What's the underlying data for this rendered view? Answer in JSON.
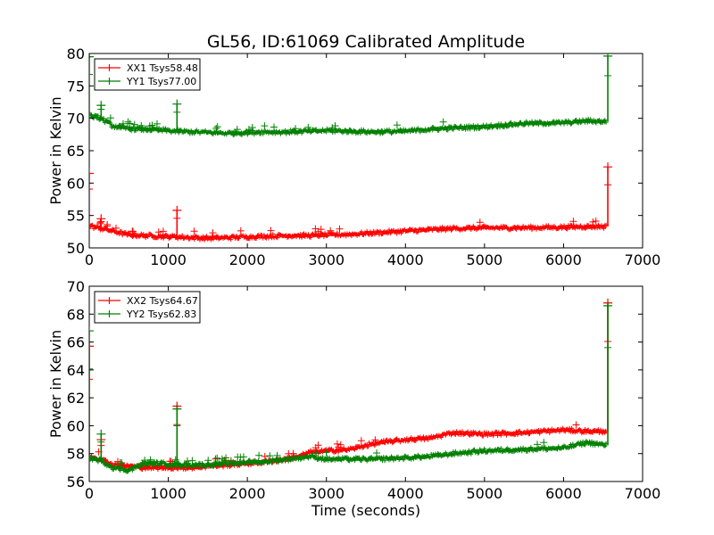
{
  "figure": {
    "title": "GL56, ID:61069 Calibrated Amplitude"
  },
  "colors": {
    "red": "#ff0000",
    "green": "#008000"
  },
  "chart_data": [
    {
      "type": "line",
      "title": "GL56, ID:61069 Calibrated Amplitude",
      "xlabel": "",
      "ylabel": "Power in Kelvin",
      "xlim": [
        0,
        7000
      ],
      "ylim": [
        50,
        80
      ],
      "xticks": [
        "0",
        "1000",
        "2000",
        "3000",
        "4000",
        "5000",
        "6000",
        "7000"
      ],
      "yticks": [
        "50",
        "55",
        "60",
        "65",
        "70",
        "75",
        "80"
      ],
      "legend_position": "top-left",
      "grid": false,
      "series": [
        {
          "name": "XX1 Tsys58.48",
          "color": "#ff0000",
          "x": [
            0,
            150,
            300,
            500,
            700,
            900,
            1100,
            1300,
            1500,
            1800,
            2000,
            2200,
            2500,
            2800,
            3000,
            3300,
            3600,
            4000,
            4300,
            4600,
            5000,
            5500,
            6000,
            6300,
            6540
          ],
          "y": [
            53.4,
            53.0,
            52.6,
            52.0,
            51.9,
            51.8,
            51.7,
            51.6,
            51.5,
            51.6,
            51.7,
            51.8,
            51.9,
            51.9,
            52.0,
            52.1,
            52.3,
            52.6,
            52.8,
            53.0,
            53.1,
            53.1,
            53.2,
            53.3,
            53.3
          ],
          "spikes": [
            {
              "x": 0,
              "y": 61.5
            },
            {
              "x": 150,
              "y": 54.5
            },
            {
              "x": 1110,
              "y": 55.8
            },
            {
              "x": 6560,
              "y": 62.5
            }
          ]
        },
        {
          "name": "YY1 Tsys77.00",
          "color": "#008000",
          "x": [
            0,
            150,
            300,
            500,
            700,
            900,
            1100,
            1300,
            1500,
            1800,
            2000,
            2200,
            2500,
            2800,
            3000,
            3300,
            3600,
            4000,
            4300,
            4600,
            5000,
            5500,
            6000,
            6300,
            6540
          ],
          "y": [
            70.4,
            70.0,
            68.8,
            68.4,
            68.3,
            68.2,
            68.0,
            67.9,
            67.8,
            67.7,
            67.8,
            67.9,
            67.9,
            68.0,
            68.1,
            68.0,
            67.9,
            68.0,
            68.3,
            68.5,
            68.7,
            69.2,
            69.3,
            69.6,
            69.5
          ],
          "spikes": [
            {
              "x": 0,
              "y": 79.5
            },
            {
              "x": 150,
              "y": 72.0
            },
            {
              "x": 1110,
              "y": 72.2
            },
            {
              "x": 6560,
              "y": 79.6
            }
          ]
        }
      ]
    },
    {
      "type": "line",
      "title": "",
      "xlabel": "Time (seconds)",
      "ylabel": "Power in Kelvin",
      "xlim": [
        0,
        7000
      ],
      "ylim": [
        56,
        70
      ],
      "xticks": [
        "0",
        "1000",
        "2000",
        "3000",
        "4000",
        "5000",
        "6000",
        "7000"
      ],
      "yticks": [
        "56",
        "58",
        "60",
        "62",
        "64",
        "66",
        "68",
        "70"
      ],
      "legend_position": "top-left",
      "grid": false,
      "series": [
        {
          "name": "XX2 Tsys64.67",
          "color": "#ff0000",
          "x": [
            0,
            150,
            300,
            500,
            700,
            900,
            1100,
            1300,
            1500,
            1800,
            2000,
            2200,
            2500,
            2700,
            2800,
            3000,
            3300,
            3500,
            3700,
            4000,
            4300,
            4600,
            5000,
            5500,
            6000,
            6300,
            6540
          ],
          "y": [
            57.8,
            57.6,
            57.2,
            57.1,
            57.0,
            57.0,
            57.0,
            57.0,
            57.1,
            57.2,
            57.3,
            57.4,
            57.6,
            57.9,
            58.1,
            58.2,
            58.3,
            58.6,
            58.8,
            59.0,
            59.1,
            59.5,
            59.4,
            59.5,
            59.7,
            59.6,
            59.6
          ],
          "spikes": [
            {
              "x": 0,
              "y": 65.7
            },
            {
              "x": 150,
              "y": 59.0
            },
            {
              "x": 1110,
              "y": 61.4
            },
            {
              "x": 6560,
              "y": 68.8
            }
          ]
        },
        {
          "name": "YY2 Tsys62.83",
          "color": "#008000",
          "x": [
            0,
            150,
            300,
            500,
            700,
            900,
            1100,
            1300,
            1500,
            1800,
            2000,
            2200,
            2500,
            2800,
            3000,
            3300,
            3600,
            4000,
            4300,
            4600,
            5000,
            5500,
            6000,
            6300,
            6540
          ],
          "y": [
            57.7,
            57.5,
            57.0,
            56.8,
            57.3,
            57.3,
            57.2,
            57.2,
            57.2,
            57.3,
            57.4,
            57.4,
            57.6,
            57.8,
            57.6,
            57.6,
            57.6,
            57.7,
            57.8,
            58.0,
            58.2,
            58.3,
            58.4,
            58.8,
            58.6
          ],
          "spikes": [
            {
              "x": 0,
              "y": 66.8
            },
            {
              "x": 150,
              "y": 59.4
            },
            {
              "x": 1110,
              "y": 61.2
            },
            {
              "x": 6560,
              "y": 68.6
            }
          ]
        }
      ]
    }
  ]
}
